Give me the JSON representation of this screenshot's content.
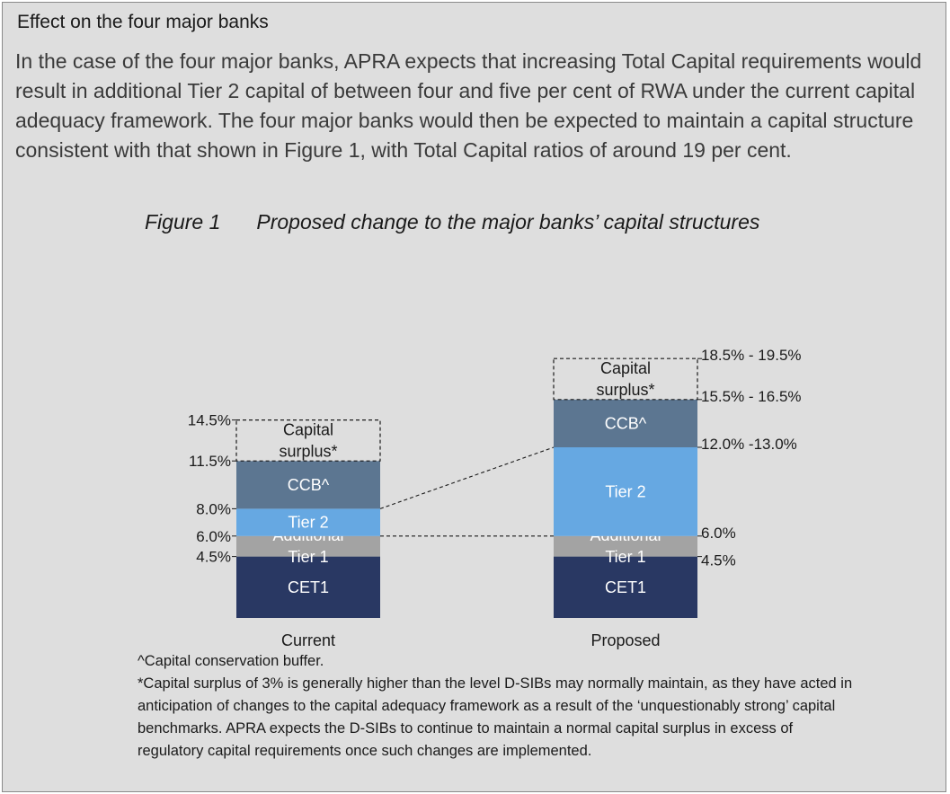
{
  "section": {
    "heading": "Effect on the four major banks",
    "body": "In the case of the four major banks, APRA expects that increasing Total Capital requirements would result in additional Tier 2 capital of between four and five per cent of RWA under the current capital adequacy framework. The four major banks would then be expected to maintain a capital structure consistent with that shown in Figure 1, with Total Capital ratios of around 19 per cent."
  },
  "figure": {
    "label": "Figure 1",
    "title": "Proposed change to the major banks’ capital structures"
  },
  "chart_data": {
    "type": "bar",
    "stacked": true,
    "title": "Proposed change to the major banks’ capital structures",
    "categories": [
      "Current",
      "Proposed"
    ],
    "ylim": [
      0,
      20
    ],
    "units": "% of RWA",
    "colors": {
      "CET1": "#293863",
      "Additional Tier 1": "#a3a3a3",
      "Tier 2": "#66a8e2",
      "CCB^": "#5c7691",
      "Capital surplus*": "#dedede"
    },
    "series": [
      {
        "name": "CET1",
        "label": "CET1",
        "values": [
          4.5,
          4.5
        ],
        "bounds": [
          [
            0,
            4.5
          ],
          [
            0,
            4.5
          ]
        ]
      },
      {
        "name": "Additional Tier 1",
        "label": "Additional Tier 1",
        "values": [
          1.5,
          1.5
        ],
        "bounds": [
          [
            4.5,
            6.0
          ],
          [
            4.5,
            6.0
          ]
        ]
      },
      {
        "name": "Tier 2",
        "label": "Tier 2",
        "values": [
          2.0,
          6.5
        ],
        "bounds": [
          [
            6.0,
            8.0
          ],
          [
            6.0,
            12.5
          ]
        ]
      },
      {
        "name": "CCB^",
        "label": "CCB^",
        "values": [
          3.5,
          3.5
        ],
        "bounds": [
          [
            8.0,
            11.5
          ],
          [
            12.5,
            16.0
          ]
        ]
      },
      {
        "name": "Capital surplus*",
        "label": "Capital surplus*",
        "values": [
          3.0,
          3.0
        ],
        "bounds": [
          [
            11.5,
            14.5
          ],
          [
            16.0,
            19.0
          ]
        ],
        "dashed": true
      }
    ],
    "left_tick_labels": [
      {
        "value": 14.5,
        "label": "14.5%"
      },
      {
        "value": 11.5,
        "label": "11.5%"
      },
      {
        "value": 8.0,
        "label": "8.0%"
      },
      {
        "value": 6.0,
        "label": "6.0%"
      },
      {
        "value": 4.5,
        "label": "4.5%"
      }
    ],
    "right_tick_labels": [
      {
        "value": 19.0,
        "label": "18.5% - 19.5%"
      },
      {
        "value": 16.0,
        "label": "15.5% - 16.5%"
      },
      {
        "value": 12.5,
        "label": "12.0% -13.0%"
      },
      {
        "value": 6.0,
        "label": "6.0%"
      },
      {
        "value": 4.5,
        "label": "4.5%"
      }
    ],
    "connectors": [
      {
        "from_value": 8.0,
        "to_value": 12.5
      },
      {
        "from_value": 6.0,
        "to_value": 6.0
      }
    ]
  },
  "footnotes": {
    "ccb": "^Capital conservation buffer.",
    "surplus": "*Capital surplus of 3% is generally higher than the level D-SIBs may normally maintain, as they have acted in anticipation of changes to the capital adequacy framework as a result of the ‘unquestionably strong’ capital benchmarks. APRA expects the D-SIBs to continue to maintain a normal capital surplus in excess of regulatory capital requirements once such changes are implemented."
  }
}
